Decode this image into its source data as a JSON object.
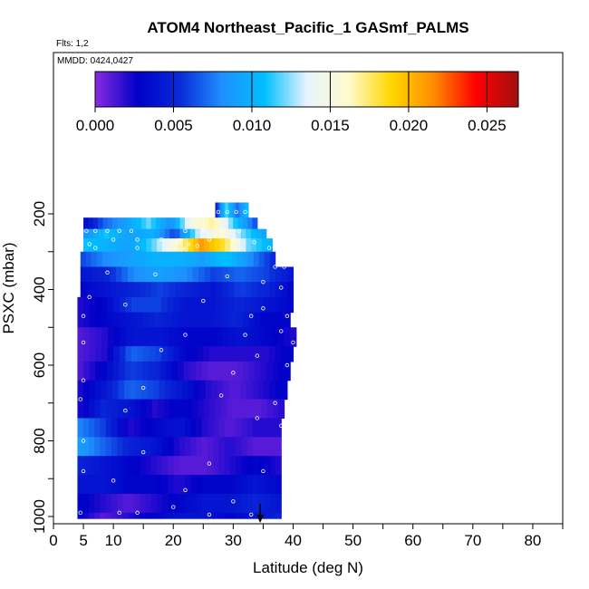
{
  "chart_data": {
    "type": "heatmap",
    "title": "ATOM4 Northeast_Pacific_1 GASmf_PALMS",
    "flights_label": "Flts: 1,2",
    "date_label": "MMDD: 0424,0427",
    "xlabel": "Latitude (deg N)",
    "ylabel": "PSXC (mbar)",
    "xlim": [
      0,
      85
    ],
    "ylim": [
      1000,
      0
    ],
    "x_ticks": [
      {
        "value": 0,
        "label": "0"
      },
      {
        "value": 5,
        "label": "5"
      },
      {
        "value": 10,
        "label": "10"
      },
      {
        "value": 20,
        "label": "20"
      },
      {
        "value": 30,
        "label": "30"
      },
      {
        "value": 40,
        "label": "40"
      },
      {
        "value": 50,
        "label": "50"
      },
      {
        "value": 60,
        "label": "60"
      },
      {
        "value": 70,
        "label": "70"
      },
      {
        "value": 80,
        "label": "80"
      }
    ],
    "x_minor_ticks": [
      15,
      25,
      35,
      45,
      55,
      65,
      75,
      85
    ],
    "y_ticks": [
      {
        "value": 200,
        "label": "200"
      },
      {
        "value": 400,
        "label": "400"
      },
      {
        "value": 600,
        "label": "600"
      },
      {
        "value": 800,
        "label": "800"
      },
      {
        "value": 1000,
        "label": "1000"
      }
    ],
    "y_minor_ticks": [
      300,
      500,
      700,
      900
    ],
    "colorbar": {
      "range": [
        0.0,
        0.027
      ],
      "ticks": [
        {
          "value": 0.0,
          "label": "0.000"
        },
        {
          "value": 0.005,
          "label": "0.005"
        },
        {
          "value": 0.01,
          "label": "0.010"
        },
        {
          "value": 0.015,
          "label": "0.015"
        },
        {
          "value": 0.02,
          "label": "0.020"
        },
        {
          "value": 0.025,
          "label": "0.025"
        }
      ],
      "colors": [
        "#8a2be2",
        "#0000c8",
        "#0a2ad8",
        "#1e90ff",
        "#00bfff",
        "#e8f4ff",
        "#fffacd",
        "#ffd700",
        "#ff8c00",
        "#ff0000",
        "#a01010"
      ]
    },
    "arrow_latitude": 34.5,
    "bands": [
      {
        "p": [
          170,
          210
        ],
        "lat": [
          27,
          32.5
        ],
        "v": [
          0.004,
          0.012,
          0.007,
          0.011
        ]
      },
      {
        "p": [
          210,
          240
        ],
        "lat": [
          5,
          34
        ],
        "v": [
          0.003,
          0.007,
          0.009,
          0.012,
          0.008,
          0.015,
          0.017,
          0.011,
          0.006
        ]
      },
      {
        "p": [
          240,
          265
        ],
        "lat": [
          5,
          35.5
        ],
        "v": [
          0.008,
          0.011,
          0.009,
          0.01,
          0.006,
          0.013,
          0.016,
          0.012,
          0.009
        ]
      },
      {
        "p": [
          265,
          300
        ],
        "lat": [
          5,
          36.5
        ],
        "v": [
          0.011,
          0.01,
          0.009,
          0.012,
          0.016,
          0.021,
          0.018,
          0.012,
          0.01
        ]
      },
      {
        "p": [
          300,
          340
        ],
        "lat": [
          4.5,
          37
        ],
        "v": [
          0.006,
          0.008,
          0.009,
          0.01,
          0.01,
          0.009,
          0.011,
          0.008,
          0.005
        ]
      },
      {
        "p": [
          340,
          380
        ],
        "lat": [
          4.5,
          40
        ],
        "v": [
          0.004,
          0.005,
          0.008,
          0.009,
          0.008,
          0.006,
          0.007,
          0.006,
          0.004
        ]
      },
      {
        "p": [
          380,
          420
        ],
        "lat": [
          4.5,
          40
        ],
        "v": [
          0.003,
          0.004,
          0.005,
          0.006,
          0.005,
          0.004,
          0.006,
          0.005,
          0.003
        ]
      },
      {
        "p": [
          420,
          460
        ],
        "lat": [
          4,
          40
        ],
        "v": [
          0.002,
          0.003,
          0.006,
          0.006,
          0.004,
          0.004,
          0.005,
          0.004,
          0.003
        ]
      },
      {
        "p": [
          460,
          500
        ],
        "lat": [
          4,
          39.5
        ],
        "v": [
          0.002,
          0.003,
          0.004,
          0.005,
          0.004,
          0.004,
          0.005,
          0.003,
          0.003
        ]
      },
      {
        "p": [
          500,
          550
        ],
        "lat": [
          4,
          40.5
        ],
        "v": [
          0.001,
          0.002,
          0.004,
          0.004,
          0.003,
          0.003,
          0.004,
          0.003,
          0.002
        ]
      },
      {
        "p": [
          550,
          590
        ],
        "lat": [
          4,
          40
        ],
        "v": [
          0.001,
          0.002,
          0.007,
          0.006,
          0.003,
          0.002,
          0.002,
          0.002,
          0.003
        ]
      },
      {
        "p": [
          590,
          640
        ],
        "lat": [
          4,
          39.5
        ],
        "v": [
          0.001,
          0.003,
          0.006,
          0.005,
          0.002,
          0.001,
          0.001,
          0.002,
          0.003
        ]
      },
      {
        "p": [
          640,
          690
        ],
        "lat": [
          4,
          39
        ],
        "v": [
          0.002,
          0.004,
          0.007,
          0.006,
          0.004,
          0.002,
          0.001,
          0.002,
          0.003
        ]
      },
      {
        "p": [
          690,
          740
        ],
        "lat": [
          4,
          38.5
        ],
        "v": [
          0.002,
          0.005,
          0.004,
          0.002,
          0.003,
          0.002,
          0.001,
          0.001,
          0.002
        ]
      },
      {
        "p": [
          740,
          790
        ],
        "lat": [
          4,
          38
        ],
        "v": [
          0.008,
          0.006,
          0.002,
          0.003,
          0.004,
          0.002,
          0.001,
          0.002,
          0.002
        ]
      },
      {
        "p": [
          790,
          840
        ],
        "lat": [
          4,
          38
        ],
        "v": [
          0.009,
          0.007,
          0.005,
          0.004,
          0.002,
          0.001,
          0.002,
          0.001,
          0.001
        ]
      },
      {
        "p": [
          840,
          890
        ],
        "lat": [
          4,
          38
        ],
        "v": [
          0.005,
          0.004,
          0.003,
          0.002,
          0.001,
          0.001,
          0.002,
          0.003,
          0.002
        ]
      },
      {
        "p": [
          890,
          940
        ],
        "lat": [
          4,
          38
        ],
        "v": [
          0.004,
          0.004,
          0.003,
          0.003,
          0.002,
          0.003,
          0.003,
          0.004,
          0.003
        ]
      },
      {
        "p": [
          940,
          990
        ],
        "lat": [
          4,
          38
        ],
        "v": [
          0.003,
          0.002,
          0.001,
          0.002,
          0.003,
          0.004,
          0.004,
          0.005,
          0.004
        ]
      },
      {
        "p": [
          990,
          1005
        ],
        "lat": [
          4,
          38
        ],
        "v": [
          0.003,
          0.001,
          0.002,
          0.003,
          0.004,
          0.004,
          0.003,
          0.004,
          0.005
        ]
      }
    ],
    "obs_points": [
      [
        27.5,
        195
      ],
      [
        29,
        195
      ],
      [
        30.5,
        195
      ],
      [
        32,
        195
      ],
      [
        5.5,
        245
      ],
      [
        7,
        245
      ],
      [
        9,
        245
      ],
      [
        11,
        245
      ],
      [
        13,
        245
      ],
      [
        22,
        245
      ],
      [
        25,
        245
      ],
      [
        28,
        245
      ],
      [
        31,
        245
      ],
      [
        6,
        280
      ],
      [
        10,
        268
      ],
      [
        14,
        268
      ],
      [
        18,
        268
      ],
      [
        21,
        270
      ],
      [
        22.5,
        280
      ],
      [
        24,
        285
      ],
      [
        26,
        268
      ],
      [
        30,
        268
      ],
      [
        33.5,
        275
      ],
      [
        7,
        290
      ],
      [
        14,
        290
      ],
      [
        22,
        292
      ],
      [
        36,
        290
      ],
      [
        38,
        330
      ],
      [
        39.5,
        330
      ],
      [
        37,
        340
      ],
      [
        38.5,
        340
      ],
      [
        9,
        355
      ],
      [
        17,
        360
      ],
      [
        29,
        365
      ],
      [
        35,
        380
      ],
      [
        38,
        395
      ],
      [
        6,
        420
      ],
      [
        12,
        440
      ],
      [
        25,
        430
      ],
      [
        35,
        450
      ],
      [
        39,
        470
      ],
      [
        33,
        470
      ],
      [
        5,
        470
      ],
      [
        22,
        520
      ],
      [
        32,
        520
      ],
      [
        38,
        510
      ],
      [
        40,
        540
      ],
      [
        5,
        540
      ],
      [
        18,
        560
      ],
      [
        34,
        575
      ],
      [
        39,
        600
      ],
      [
        30,
        620
      ],
      [
        5,
        640
      ],
      [
        15,
        660
      ],
      [
        28,
        680
      ],
      [
        37,
        700
      ],
      [
        4.5,
        690
      ],
      [
        12,
        720
      ],
      [
        34,
        740
      ],
      [
        38,
        760
      ],
      [
        5,
        800
      ],
      [
        15,
        830
      ],
      [
        26,
        860
      ],
      [
        35,
        880
      ],
      [
        5,
        880
      ],
      [
        10,
        905
      ],
      [
        22,
        930
      ],
      [
        30,
        960
      ],
      [
        4.5,
        990
      ],
      [
        11,
        990
      ],
      [
        14,
        990
      ],
      [
        20,
        975
      ],
      [
        26,
        995
      ],
      [
        33,
        995
      ]
    ]
  }
}
